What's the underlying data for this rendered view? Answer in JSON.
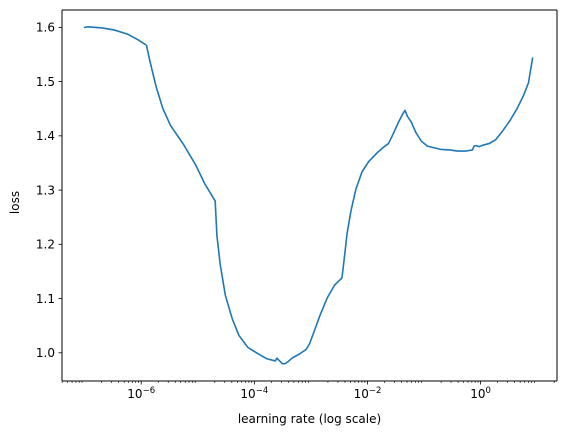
{
  "chart_data": {
    "type": "line",
    "title": "",
    "xlabel": "learning rate (log scale)",
    "ylabel": "loss",
    "xscale": "log",
    "xlim": [
      3.98e-08,
      22.4
    ],
    "ylim": [
      0.948,
      1.632
    ],
    "grid": false,
    "legend": "none",
    "x_ticks": [
      {
        "value": 1e-06,
        "base": "10",
        "exp": "−6"
      },
      {
        "value": 0.0001,
        "base": "10",
        "exp": "−4"
      },
      {
        "value": 0.01,
        "base": "10",
        "exp": "−2"
      },
      {
        "value": 1,
        "base": "10",
        "exp": "0"
      }
    ],
    "y_ticks": [
      {
        "value": 1.0,
        "label": "1.0"
      },
      {
        "value": 1.1,
        "label": "1.1"
      },
      {
        "value": 1.2,
        "label": "1.2"
      },
      {
        "value": 1.3,
        "label": "1.3"
      },
      {
        "value": 1.4,
        "label": "1.4"
      },
      {
        "value": 1.5,
        "label": "1.5"
      },
      {
        "value": 1.6,
        "label": "1.6"
      }
    ],
    "series": [
      {
        "color": "#1f77b4",
        "x": [
          1e-07,
          1.15e-07,
          2.05e-07,
          3.38e-07,
          5.9e-07,
          8.8e-07,
          1.24e-06,
          1.4e-06,
          1.83e-06,
          2.4e-06,
          3.3e-06,
          5.6e-06,
          9.1e-06,
          1.34e-05,
          2.03e-05,
          2.18e-05,
          2.49e-05,
          3.07e-05,
          4.09e-05,
          5.34e-05,
          7.66e-05,
          0.000113,
          0.000166,
          0.000235,
          0.000251,
          0.00028,
          0.000311,
          0.00035,
          0.0004,
          0.000462,
          0.00063,
          0.00082,
          0.00094,
          0.00111,
          0.00146,
          0.00196,
          0.00263,
          0.00354,
          0.00397,
          0.00433,
          0.00511,
          0.00626,
          0.00802,
          0.0106,
          0.0149,
          0.0192,
          0.0236,
          0.0283,
          0.0353,
          0.0418,
          0.0461,
          0.0507,
          0.0591,
          0.0718,
          0.0896,
          0.115,
          0.15,
          0.198,
          0.285,
          0.394,
          0.556,
          0.716,
          0.766,
          0.832,
          0.94,
          1.12,
          1.43,
          1.85,
          2.45,
          3.34,
          4.45,
          5.77,
          7.02,
          8.28
        ],
        "y": [
          1.6,
          1.601,
          1.599,
          1.595,
          1.587,
          1.577,
          1.567,
          1.541,
          1.491,
          1.451,
          1.419,
          1.384,
          1.347,
          1.311,
          1.28,
          1.216,
          1.163,
          1.106,
          1.062,
          1.032,
          1.01,
          0.999,
          0.989,
          0.985,
          0.99,
          0.985,
          0.98,
          0.98,
          0.984,
          0.99,
          0.998,
          1.006,
          1.016,
          1.036,
          1.07,
          1.102,
          1.125,
          1.138,
          1.182,
          1.218,
          1.262,
          1.302,
          1.334,
          1.353,
          1.369,
          1.379,
          1.386,
          1.403,
          1.425,
          1.44,
          1.447,
          1.436,
          1.426,
          1.406,
          1.39,
          1.381,
          1.378,
          1.375,
          1.374,
          1.372,
          1.372,
          1.374,
          1.381,
          1.382,
          1.38,
          1.383,
          1.386,
          1.393,
          1.409,
          1.429,
          1.451,
          1.475,
          1.498,
          1.543
        ]
      }
    ]
  }
}
